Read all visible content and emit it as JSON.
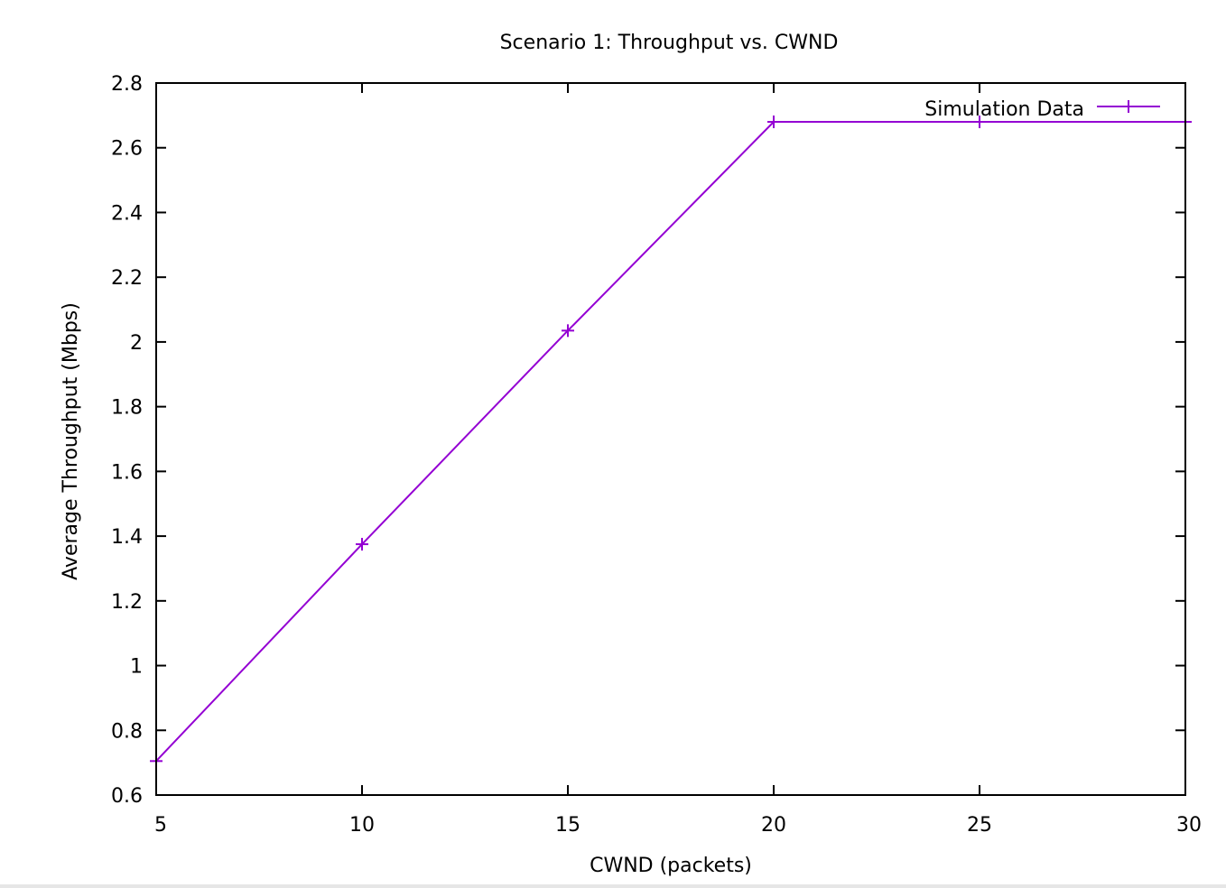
{
  "chart_data": {
    "type": "line",
    "title": "Scenario 1: Throughput vs. CWND",
    "xlabel": "CWND (packets)",
    "ylabel": "Average Throughput (Mbps)",
    "xlim": [
      5,
      30
    ],
    "ylim": [
      0.6,
      2.8
    ],
    "x_ticks": [
      5,
      10,
      15,
      20,
      25,
      30
    ],
    "y_ticks": [
      0.6,
      0.8,
      1,
      1.2,
      1.4,
      1.6,
      1.8,
      2,
      2.2,
      2.4,
      2.6,
      2.8
    ],
    "x_tick_labels": [
      "5",
      "10",
      "15",
      "20",
      "25",
      "30"
    ],
    "y_tick_labels": [
      "0.6",
      "0.8",
      "1",
      "1.2",
      "1.4",
      "1.6",
      "1.8",
      "2",
      "2.2",
      "2.4",
      "2.6",
      "2.8"
    ],
    "grid": false,
    "legend_position": "top-right",
    "series": [
      {
        "name": "Simulation Data",
        "color": "#9400d3",
        "marker": "plus",
        "x": [
          5,
          10,
          15,
          20,
          25,
          30
        ],
        "y": [
          0.705,
          1.375,
          2.035,
          2.68,
          2.68,
          2.68
        ]
      }
    ]
  }
}
